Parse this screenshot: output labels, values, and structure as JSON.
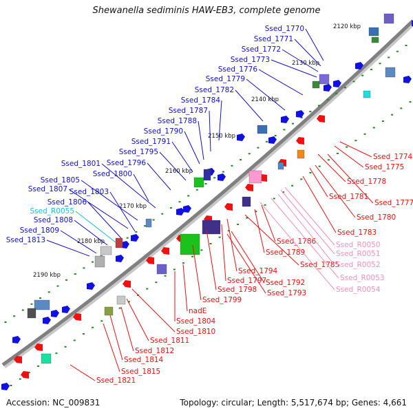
{
  "title": "Shewanella sediminis HAW-EB3, complete genome",
  "footer": {
    "accession": "Accession: NC_009831",
    "summary": "Topology: circular; Length: 5,517,674 bp; Genes: 4,661"
  },
  "colors": {
    "forward_label": "#1010c8",
    "reverse_label": "#e81010",
    "rna_forward_label": "#18c0d8",
    "rna_reverse_label": "#f090b8",
    "backbone": "#808080",
    "tick": "#1a8a1a"
  },
  "scale_labels": [
    "2120 kbp",
    "2130 kbp",
    "2140 kbp",
    "2150 kbp",
    "2160 kbp",
    "2170 kbp",
    "2180 kbp",
    "2190 kbp"
  ],
  "forward_labels": [
    "Ssed_1770",
    "Ssed_1771",
    "Ssed_1772",
    "Ssed_1773",
    "Ssed_1776",
    "Ssed_1779",
    "Ssed_1782",
    "Ssed_1784",
    "Ssed_1787",
    "Ssed_1788",
    "Ssed_1790",
    "Ssed_1791",
    "Ssed_1795",
    "Ssed_1796",
    "Ssed_1801",
    "Ssed_1800",
    "Ssed_1805",
    "Ssed_1807",
    "Ssed_1803",
    "Ssed_1806",
    "Ssed_R0055",
    "Ssed_1808",
    "Ssed_1809",
    "Ssed_1813"
  ],
  "reverse_labels": [
    "Ssed_1774",
    "Ssed_1775",
    "Ssed_1778",
    "Ssed_1777",
    "Ssed_1781",
    "Ssed_1780",
    "Ssed_1783",
    "Ssed_1786",
    "Ssed_R0050",
    "Ssed_1789",
    "Ssed_R0051",
    "Ssed_1785",
    "Ssed_R0052",
    "Ssed_1794",
    "Ssed_R0053",
    "Ssed_1797",
    "Ssed_1792",
    "Ssed_1798",
    "Ssed_R0054",
    "Ssed_1793",
    "Ssed_1799",
    "nadE",
    "Ssed_1804",
    "Ssed_1810",
    "Ssed_1811",
    "Ssed_1812",
    "Ssed_1814",
    "Ssed_1815",
    "Ssed_1821"
  ]
}
